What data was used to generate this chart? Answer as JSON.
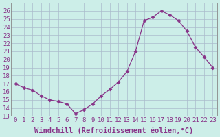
{
  "x": [
    0,
    1,
    2,
    3,
    4,
    5,
    6,
    7,
    8,
    9,
    10,
    11,
    12,
    13,
    14,
    15,
    16,
    17,
    18,
    19,
    20,
    21,
    22,
    23
  ],
  "y": [
    17.0,
    16.5,
    16.2,
    15.5,
    15.0,
    14.8,
    14.5,
    13.3,
    13.8,
    14.5,
    15.5,
    16.3,
    17.2,
    18.5,
    21.0,
    24.8,
    25.2,
    26.0,
    25.5,
    24.8,
    23.5,
    21.5,
    20.3,
    19.0
  ],
  "line_color": "#883388",
  "marker": "D",
  "marker_size": 2.5,
  "bg_color": "#cceee8",
  "grid_color": "#aabbcc",
  "xlabel": "Windchill (Refroidissement éolien,°C)",
  "xlabel_fontsize": 7.5,
  "ylim": [
    13,
    27
  ],
  "yticks": [
    13,
    14,
    15,
    16,
    17,
    18,
    19,
    20,
    21,
    22,
    23,
    24,
    25,
    26
  ],
  "xticks": [
    0,
    1,
    2,
    3,
    4,
    5,
    6,
    7,
    8,
    9,
    10,
    11,
    12,
    13,
    14,
    15,
    16,
    17,
    18,
    19,
    20,
    21,
    22,
    23
  ],
  "tick_fontsize": 6.5
}
